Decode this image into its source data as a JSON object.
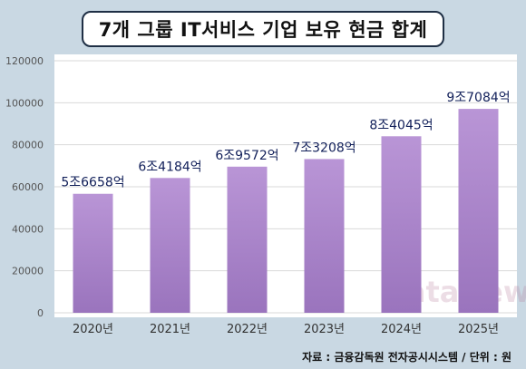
{
  "chart_data": {
    "type": "bar",
    "title": "7개 그룹 IT서비스 기업 보유 현금 합계",
    "categories": [
      "2020년",
      "2021년",
      "2022년",
      "2023년",
      "2024년",
      "2025년"
    ],
    "values": [
      56658,
      64184,
      69572,
      73208,
      84045,
      97084
    ],
    "data_labels": [
      "5조6658억",
      "6조4184억",
      "6조9572억",
      "7조3208억",
      "8조4045억",
      "9조7084억"
    ],
    "ylim": [
      0,
      120000
    ],
    "yticks": [
      "0",
      "20000",
      "40000",
      "60000",
      "80000",
      "100000",
      "120000"
    ],
    "xlabel": "",
    "ylabel": "",
    "grid": true,
    "bar_color": "#a884c9"
  },
  "source": "자료 : 금융감독원 전자공시시스템 / 단위 : 원",
  "watermark": "dataNews"
}
